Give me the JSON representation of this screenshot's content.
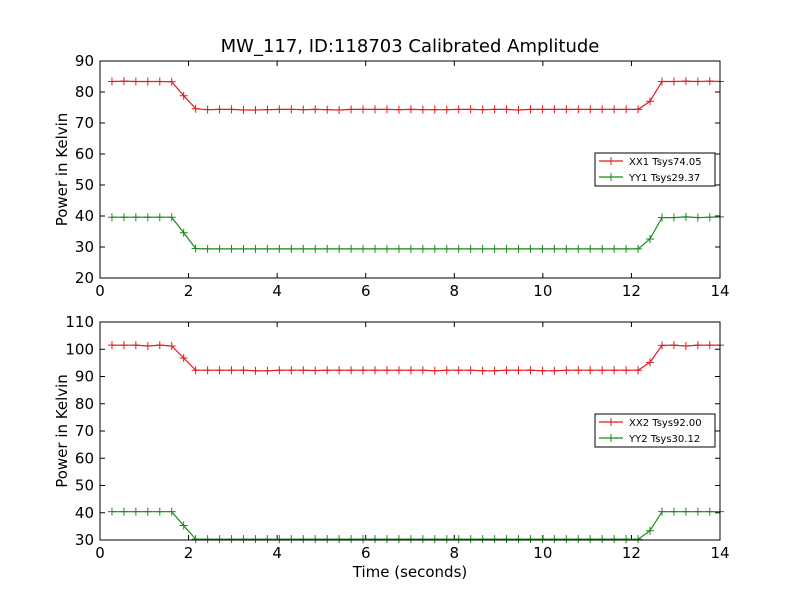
{
  "figure": {
    "title": "MW_117, ID:118703 Calibrated Amplitude"
  },
  "chart_data": [
    {
      "type": "line",
      "ylabel": "Power in Kelvin",
      "xlabel": "",
      "xlim": [
        0,
        14
      ],
      "ylim": [
        20,
        90
      ],
      "xticks": [
        0,
        2,
        4,
        6,
        8,
        10,
        12,
        14
      ],
      "yticks": [
        20,
        30,
        40,
        50,
        60,
        70,
        80,
        90
      ],
      "grid": false,
      "legend_position": "center-right",
      "series": [
        {
          "name": "XX1 Tsys74.05",
          "color": "#e41a1c",
          "x": [
            0.27,
            0.54,
            0.81,
            1.08,
            1.35,
            1.62,
            1.89,
            2.16,
            2.43,
            2.7,
            2.97,
            3.24,
            3.51,
            3.78,
            4.05,
            4.32,
            4.59,
            4.86,
            5.13,
            5.4,
            5.67,
            5.94,
            6.21,
            6.48,
            6.75,
            7.02,
            7.29,
            7.56,
            7.83,
            8.1,
            8.37,
            8.64,
            8.91,
            9.18,
            9.45,
            9.72,
            9.99,
            10.26,
            10.53,
            10.8,
            11.07,
            11.34,
            11.61,
            11.88,
            12.15,
            12.42,
            12.69,
            12.96,
            13.23,
            13.5,
            13.77,
            14.0
          ],
          "y": [
            83.4,
            83.5,
            83.4,
            83.4,
            83.4,
            83.3,
            78.8,
            74.6,
            74.3,
            74.4,
            74.4,
            74.2,
            74.2,
            74.3,
            74.4,
            74.4,
            74.3,
            74.4,
            74.3,
            74.2,
            74.4,
            74.4,
            74.4,
            74.4,
            74.3,
            74.4,
            74.3,
            74.3,
            74.3,
            74.4,
            74.4,
            74.3,
            74.4,
            74.4,
            74.2,
            74.4,
            74.4,
            74.4,
            74.4,
            74.4,
            74.4,
            74.4,
            74.4,
            74.4,
            74.4,
            77.0,
            83.4,
            83.4,
            83.5,
            83.4,
            83.5,
            83.4
          ]
        },
        {
          "name": "YY1 Tsys29.37",
          "color": "#1a8a1a",
          "x": [
            0.27,
            0.54,
            0.81,
            1.08,
            1.35,
            1.62,
            1.89,
            2.16,
            2.43,
            2.7,
            2.97,
            3.24,
            3.51,
            3.78,
            4.05,
            4.32,
            4.59,
            4.86,
            5.13,
            5.4,
            5.67,
            5.94,
            6.21,
            6.48,
            6.75,
            7.02,
            7.29,
            7.56,
            7.83,
            8.1,
            8.37,
            8.64,
            8.91,
            9.18,
            9.45,
            9.72,
            9.99,
            10.26,
            10.53,
            10.8,
            11.07,
            11.34,
            11.61,
            11.88,
            12.15,
            12.42,
            12.69,
            12.96,
            13.23,
            13.5,
            13.77,
            14.0
          ],
          "y": [
            39.6,
            39.6,
            39.6,
            39.6,
            39.6,
            39.6,
            34.6,
            29.5,
            29.4,
            29.4,
            29.4,
            29.4,
            29.4,
            29.4,
            29.4,
            29.4,
            29.4,
            29.4,
            29.4,
            29.4,
            29.4,
            29.4,
            29.4,
            29.4,
            29.4,
            29.4,
            29.4,
            29.4,
            29.4,
            29.4,
            29.4,
            29.4,
            29.4,
            29.4,
            29.4,
            29.4,
            29.4,
            29.4,
            29.4,
            29.4,
            29.4,
            29.4,
            29.4,
            29.4,
            29.4,
            32.6,
            39.5,
            39.5,
            39.7,
            39.5,
            39.6,
            39.7
          ]
        }
      ]
    },
    {
      "type": "line",
      "ylabel": "Power in Kelvin",
      "xlabel": "Time (seconds)",
      "xlim": [
        0,
        14
      ],
      "ylim": [
        30,
        110
      ],
      "xticks": [
        0,
        2,
        4,
        6,
        8,
        10,
        12,
        14
      ],
      "yticks": [
        30,
        40,
        50,
        60,
        70,
        80,
        90,
        100,
        110
      ],
      "grid": false,
      "legend_position": "center-right",
      "series": [
        {
          "name": "XX2 Tsys92.00",
          "color": "#e41a1c",
          "x": [
            0.27,
            0.54,
            0.81,
            1.08,
            1.35,
            1.62,
            1.89,
            2.16,
            2.43,
            2.7,
            2.97,
            3.24,
            3.51,
            3.78,
            4.05,
            4.32,
            4.59,
            4.86,
            5.13,
            5.4,
            5.67,
            5.94,
            6.21,
            6.48,
            6.75,
            7.02,
            7.29,
            7.56,
            7.83,
            8.1,
            8.37,
            8.64,
            8.91,
            9.18,
            9.45,
            9.72,
            9.99,
            10.26,
            10.53,
            10.8,
            11.07,
            11.34,
            11.61,
            11.88,
            12.15,
            12.42,
            12.69,
            12.96,
            13.23,
            13.5,
            13.77,
            14.0
          ],
          "y": [
            101.5,
            101.5,
            101.5,
            101.2,
            101.5,
            101.2,
            96.8,
            92.3,
            92.3,
            92.3,
            92.3,
            92.3,
            92.1,
            92.1,
            92.3,
            92.3,
            92.3,
            92.2,
            92.3,
            92.3,
            92.3,
            92.3,
            92.3,
            92.3,
            92.3,
            92.3,
            92.3,
            92.1,
            92.3,
            92.3,
            92.3,
            92.1,
            92.1,
            92.3,
            92.3,
            92.3,
            92.1,
            92.1,
            92.3,
            92.3,
            92.3,
            92.3,
            92.3,
            92.3,
            92.3,
            95.2,
            101.4,
            101.5,
            101.2,
            101.5,
            101.5,
            101.5
          ]
        },
        {
          "name": "YY2 Tsys30.12",
          "color": "#1a8a1a",
          "x": [
            0.27,
            0.54,
            0.81,
            1.08,
            1.35,
            1.62,
            1.89,
            2.16,
            2.43,
            2.7,
            2.97,
            3.24,
            3.51,
            3.78,
            4.05,
            4.32,
            4.59,
            4.86,
            5.13,
            5.4,
            5.67,
            5.94,
            6.21,
            6.48,
            6.75,
            7.02,
            7.29,
            7.56,
            7.83,
            8.1,
            8.37,
            8.64,
            8.91,
            9.18,
            9.45,
            9.72,
            9.99,
            10.26,
            10.53,
            10.8,
            11.07,
            11.34,
            11.61,
            11.88,
            12.15,
            12.42,
            12.69,
            12.96,
            13.23,
            13.5,
            13.77,
            14.0
          ],
          "y": [
            40.4,
            40.4,
            40.4,
            40.4,
            40.4,
            40.4,
            35.3,
            30.3,
            30.3,
            30.3,
            30.3,
            30.3,
            30.3,
            30.3,
            30.3,
            30.3,
            30.3,
            30.3,
            30.3,
            30.3,
            30.3,
            30.3,
            30.3,
            30.3,
            30.3,
            30.3,
            30.3,
            30.3,
            30.3,
            30.3,
            30.3,
            30.3,
            30.3,
            30.3,
            30.3,
            30.3,
            30.3,
            30.3,
            30.3,
            30.3,
            30.3,
            30.3,
            30.3,
            30.3,
            30.3,
            33.4,
            40.4,
            40.4,
            40.4,
            40.4,
            40.4,
            40.4
          ]
        }
      ]
    }
  ]
}
